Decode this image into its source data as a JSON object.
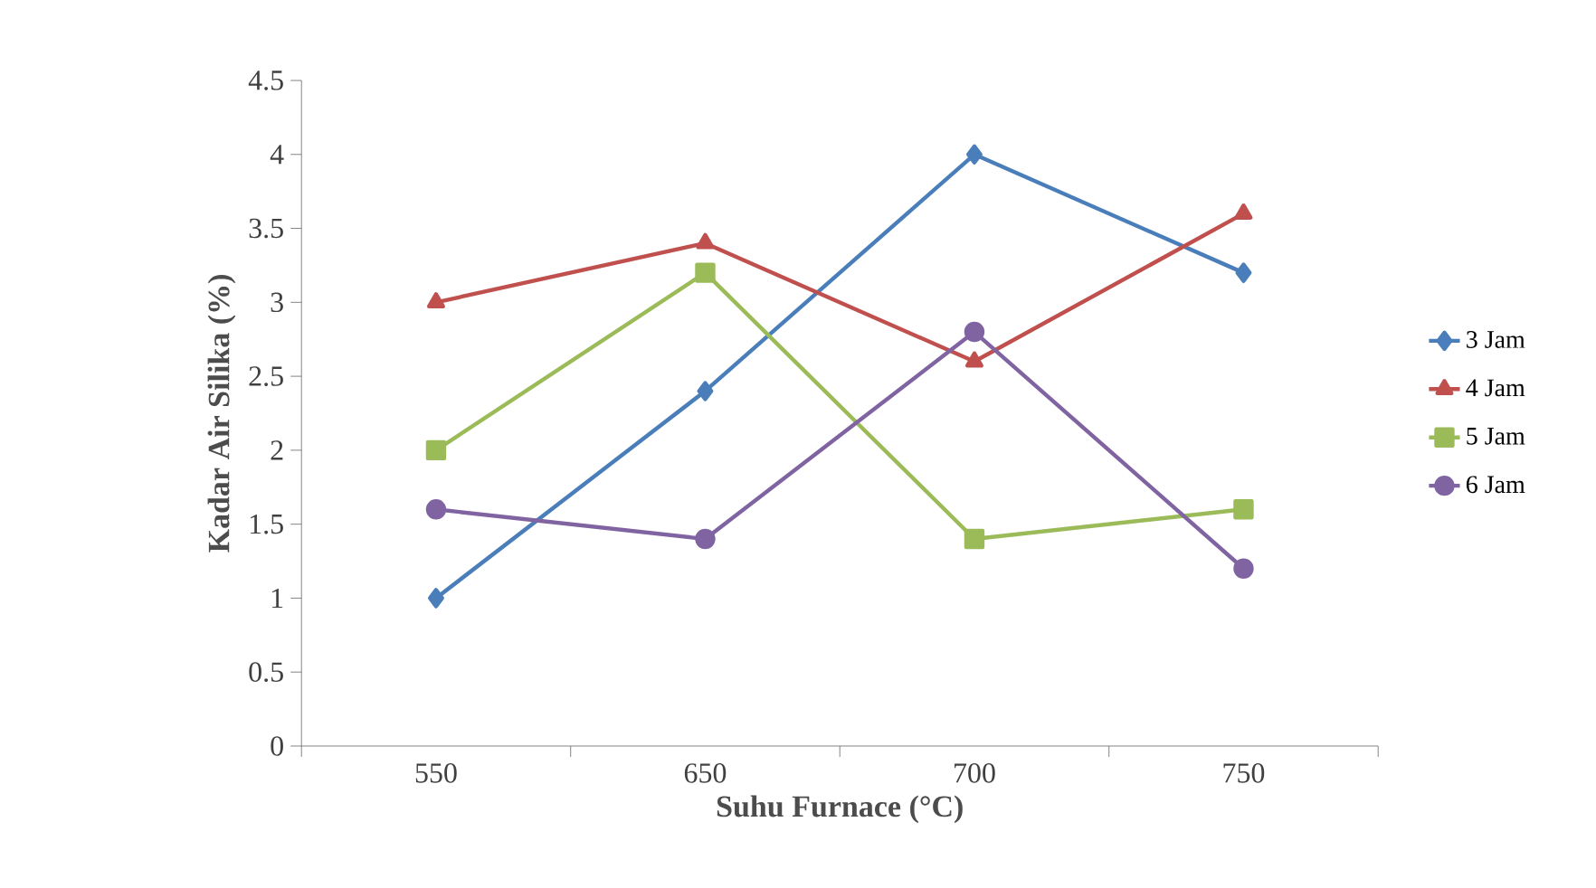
{
  "chart_data": {
    "type": "line",
    "xlabel": "Suhu Furnace (°C)",
    "ylabel": "Kadar Air Silika (%)",
    "categories": [
      "550",
      "650",
      "700",
      "750"
    ],
    "series": [
      {
        "name": "3 Jam",
        "color": "#4a7ebb",
        "marker": "diamond",
        "values": [
          1,
          2.4,
          4,
          3.2
        ]
      },
      {
        "name": "4 Jam",
        "color": "#c0504d",
        "marker": "triangle",
        "values": [
          3,
          3.4,
          2.6,
          3.6
        ]
      },
      {
        "name": "5 Jam",
        "color": "#9bbb59",
        "marker": "square",
        "values": [
          2,
          3.2,
          1.4,
          1.6
        ]
      },
      {
        "name": "6 Jam",
        "color": "#8064a2",
        "marker": "circle",
        "values": [
          1.6,
          1.4,
          2.8,
          1.2
        ]
      }
    ],
    "ylim": [
      0,
      4.5
    ],
    "yticks": [
      0,
      0.5,
      1,
      1.5,
      2,
      2.5,
      3,
      3.5,
      4,
      4.5
    ],
    "grid": false,
    "legend": "right",
    "line_style": "solid"
  }
}
